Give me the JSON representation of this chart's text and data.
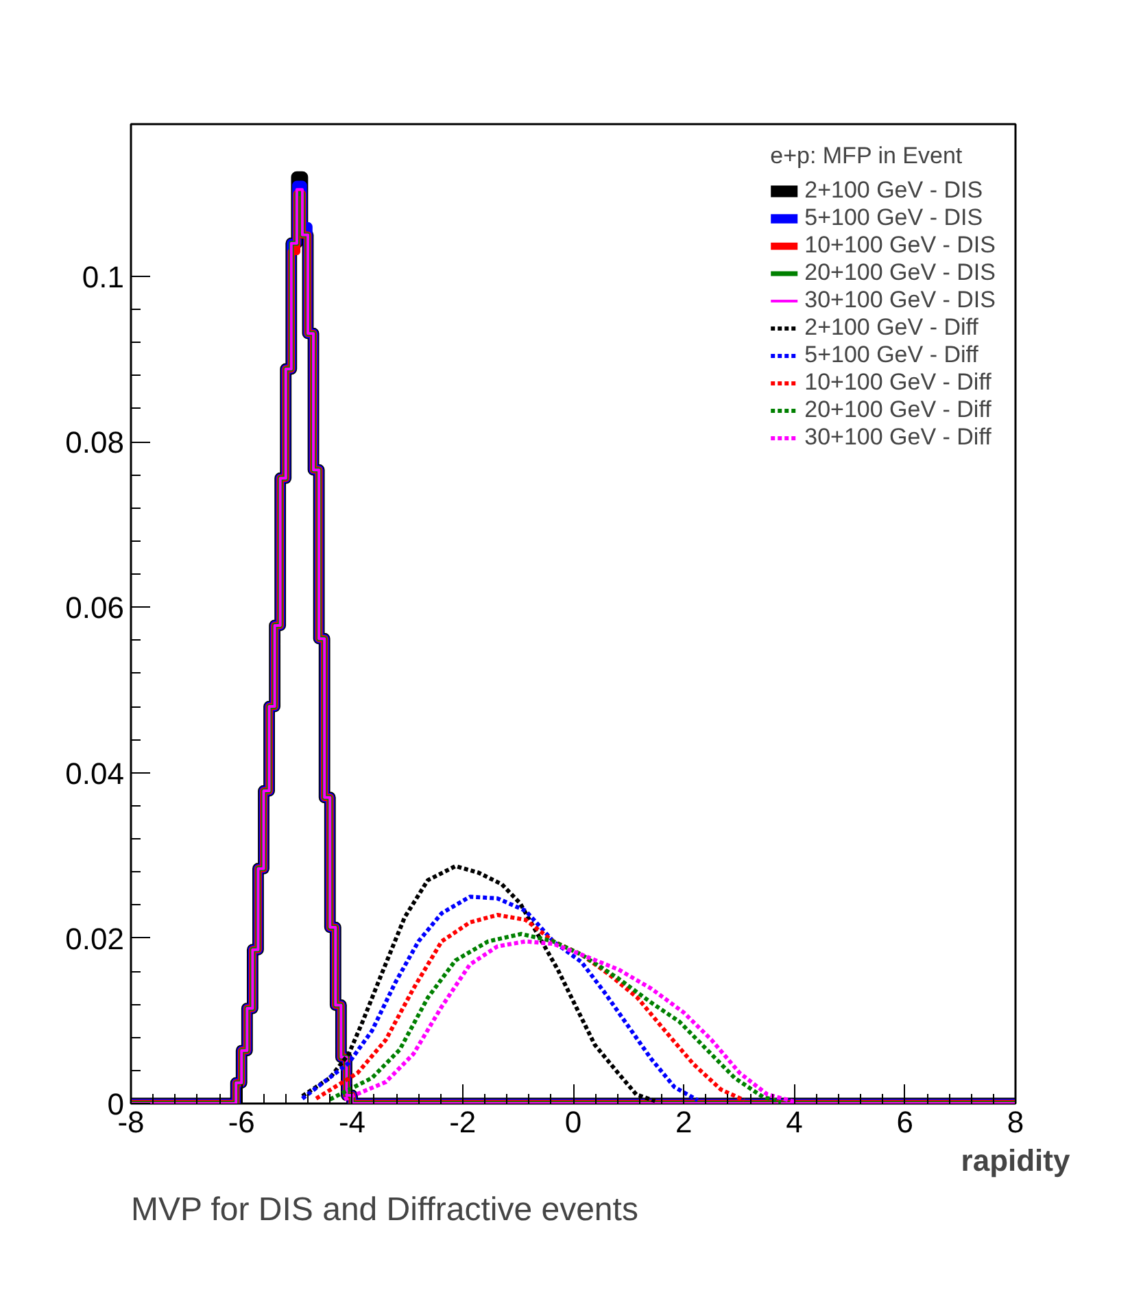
{
  "chart_data": {
    "type": "step",
    "xlabel": "rapidity",
    "legend_title": "e+p: MFP in Event",
    "annotations": [
      "MVP for DIS and Diffractive events"
    ],
    "xlim": [
      -8,
      8
    ],
    "ylim": [
      0,
      0.1184
    ],
    "xticks": [
      -8,
      -6,
      -4,
      -2,
      0,
      2,
      4,
      6,
      8
    ],
    "yticks": [
      0,
      0.02,
      0.04,
      0.06,
      0.08,
      0.1
    ],
    "grid": false,
    "legend": "top right",
    "x": [
      -8,
      -6.1,
      -6.0,
      -5.9,
      -5.8,
      -5.7,
      -5.6,
      -5.5,
      -5.4,
      -5.3,
      -5.2,
      -5.1,
      -5.0,
      -4.9,
      -4.8,
      -4.7,
      -4.6,
      -4.5,
      -4.4,
      -4.3,
      -4.2,
      -4.1,
      -4.0,
      8
    ],
    "series": [
      {
        "name": "2+100 GeV - DIS",
        "color": "#000000",
        "line_style": "solid",
        "values": [
          0,
          0.0025,
          0.0064,
          0.0115,
          0.0186,
          0.0284,
          0.0378,
          0.048,
          0.0578,
          0.0756,
          0.0888,
          0.104,
          0.112,
          0.105,
          0.0931,
          0.0766,
          0.0562,
          0.037,
          0.0213,
          0.0119,
          0.0056,
          0.001,
          0,
          0
        ]
      },
      {
        "name": "5+100 GeV - DIS",
        "color": "#0000ff",
        "line_style": "solid",
        "values": [
          0,
          0.0025,
          0.0064,
          0.0115,
          0.0186,
          0.0284,
          0.0378,
          0.048,
          0.0578,
          0.0756,
          0.0888,
          0.104,
          0.111,
          0.106,
          0.0931,
          0.0766,
          0.0562,
          0.037,
          0.0213,
          0.0119,
          0.0056,
          0.001,
          0,
          0
        ]
      },
      {
        "name": "10+100 GeV - DIS",
        "color": "#ff0000",
        "line_style": "solid",
        "values": [
          0,
          0.0025,
          0.0064,
          0.0115,
          0.0186,
          0.0284,
          0.0378,
          0.048,
          0.0578,
          0.0756,
          0.0888,
          0.103,
          0.11,
          0.105,
          0.0931,
          0.0766,
          0.0562,
          0.037,
          0.0213,
          0.0119,
          0.0056,
          0.001,
          0,
          0
        ]
      },
      {
        "name": "20+100 GeV - DIS",
        "color": "#008000",
        "line_style": "solid",
        "values": [
          0,
          0.0025,
          0.0064,
          0.0115,
          0.0186,
          0.0284,
          0.0378,
          0.048,
          0.0578,
          0.0756,
          0.0888,
          0.104,
          0.11,
          0.105,
          0.0931,
          0.0766,
          0.0562,
          0.037,
          0.0213,
          0.0119,
          0.0056,
          0.001,
          0,
          0
        ]
      },
      {
        "name": "30+100 GeV - DIS",
        "color": "#ff00ff",
        "line_style": "solid",
        "values": [
          0,
          0.0025,
          0.0064,
          0.0115,
          0.0186,
          0.0284,
          0.0378,
          0.048,
          0.0578,
          0.0756,
          0.0888,
          0.104,
          0.1105,
          0.105,
          0.0931,
          0.0766,
          0.0562,
          0.037,
          0.0213,
          0.0119,
          0.0056,
          0.001,
          0,
          0
        ]
      },
      {
        "name": "2+100 GeV - Diff",
        "color": "#000000",
        "type": "line",
        "line_style": "dotted",
        "x": [
          -4.9,
          -4.4,
          -4.06,
          -3.81,
          -3.47,
          -3.05,
          -2.63,
          -2.13,
          -1.71,
          -1.29,
          -0.96,
          -0.62,
          -0.28,
          0.05,
          0.39,
          0.81,
          1.14,
          1.48
        ],
        "values": [
          0.0009,
          0.0031,
          0.006,
          0.0099,
          0.0156,
          0.0225,
          0.027,
          0.0287,
          0.0279,
          0.0265,
          0.0242,
          0.0202,
          0.0162,
          0.0117,
          0.0071,
          0.0037,
          0.0011,
          0.0003
        ]
      },
      {
        "name": "5+100 GeV - Diff",
        "color": "#0000ff",
        "type": "line",
        "line_style": "dotted",
        "x": [
          -4.9,
          -4.06,
          -3.64,
          -3.22,
          -2.8,
          -2.38,
          -1.87,
          -1.37,
          -0.86,
          -0.36,
          0.15,
          0.57,
          0.99,
          1.41,
          1.83,
          2.25
        ],
        "values": [
          0.0006,
          0.0049,
          0.0088,
          0.0146,
          0.0196,
          0.023,
          0.025,
          0.0248,
          0.0233,
          0.0196,
          0.0171,
          0.0134,
          0.0094,
          0.0054,
          0.002,
          0.0004
        ]
      },
      {
        "name": "10+100 GeV - Diff",
        "color": "#ff0000",
        "type": "line",
        "line_style": "dotted",
        "x": [
          -4.65,
          -3.9,
          -3.39,
          -2.89,
          -2.38,
          -1.87,
          -1.37,
          -0.86,
          -0.36,
          0.15,
          0.65,
          1.16,
          1.66,
          2.17,
          2.67,
          3.09
        ],
        "values": [
          0.0006,
          0.0037,
          0.0077,
          0.0139,
          0.0196,
          0.0219,
          0.0228,
          0.0222,
          0.0196,
          0.018,
          0.0156,
          0.0128,
          0.0088,
          0.0048,
          0.0017,
          0.0004
        ]
      },
      {
        "name": "20+100 GeV - Diff",
        "color": "#008000",
        "type": "line",
        "line_style": "dotted",
        "x": [
          -4.4,
          -3.64,
          -3.14,
          -2.63,
          -2.13,
          -1.54,
          -0.94,
          -0.36,
          0.15,
          0.82,
          1.41,
          1.92,
          2.42,
          2.92,
          3.43,
          3.76
        ],
        "values": [
          0.0005,
          0.0031,
          0.0065,
          0.0128,
          0.0173,
          0.0196,
          0.0205,
          0.0196,
          0.018,
          0.0151,
          0.0122,
          0.0099,
          0.0065,
          0.0031,
          0.0008,
          0.0002
        ]
      },
      {
        "name": "30+100 GeV - Diff",
        "color": "#ff00ff",
        "type": "line",
        "line_style": "dotted",
        "x": [
          -4.14,
          -3.39,
          -2.89,
          -2.38,
          -1.87,
          -1.37,
          -0.86,
          -0.36,
          0.15,
          0.82,
          1.41,
          2.0,
          2.5,
          3.01,
          3.51,
          4.01
        ],
        "values": [
          0.0005,
          0.0026,
          0.006,
          0.0117,
          0.0168,
          0.019,
          0.0196,
          0.0193,
          0.018,
          0.0162,
          0.0139,
          0.011,
          0.0077,
          0.0037,
          0.0011,
          0.0002
        ]
      }
    ]
  }
}
